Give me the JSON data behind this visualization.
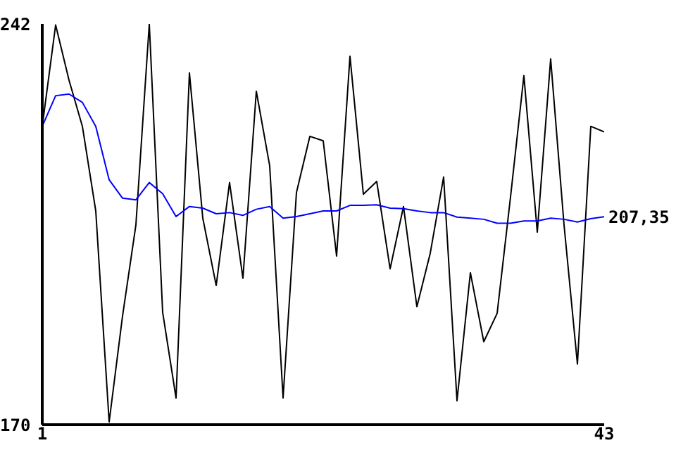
{
  "chart_data": {
    "type": "line",
    "x": [
      1,
      2,
      3,
      4,
      5,
      6,
      7,
      8,
      9,
      10,
      11,
      12,
      13,
      14,
      15,
      16,
      17,
      18,
      19,
      20,
      21,
      22,
      23,
      24,
      25,
      26,
      27,
      28,
      29,
      30,
      31,
      32,
      33,
      34,
      35,
      36,
      37,
      38,
      39,
      40,
      41,
      42,
      43
    ],
    "series": [
      {
        "color": "#000000",
        "values": [
          223.6,
          241.8,
          231.9,
          223.6,
          208.4,
          170.5,
          189.5,
          205.9,
          242,
          190.2,
          174.8,
          233.2,
          207.1,
          195,
          213.5,
          196.3,
          229.9,
          216.5,
          174.8,
          211.7,
          221.8,
          221,
          200.3,
          236.2,
          211.4,
          213.7,
          198,
          209.2,
          191.2,
          200.8,
          214.5,
          174.3,
          197.3,
          184.9,
          190,
          210.9,
          232.7,
          204.6,
          235.7,
          205.9,
          180.9,
          223.6,
          222.6
        ]
      },
      {
        "color": "#0000ff",
        "values": [
          223.6,
          229.1,
          229.4,
          227.9,
          223.6,
          214,
          210.7,
          210.4,
          213.5,
          211.5,
          207.4,
          209.2,
          208.9,
          207.9,
          208.1,
          207.6,
          208.7,
          209.2,
          207.1,
          207.4,
          207.9,
          208.4,
          208.4,
          209.4,
          209.4,
          209.5,
          208.9,
          208.8,
          208.4,
          208.1,
          208.1,
          207.3,
          207.1,
          206.9,
          206.2,
          206.2,
          206.6,
          206.6,
          207.1,
          206.9,
          206.4,
          207,
          207.35
        ]
      }
    ],
    "xlim": [
      1,
      43
    ],
    "xticks": [
      1,
      43
    ],
    "ylim": [
      170,
      242
    ],
    "yticks": [
      170,
      242
    ],
    "grid": false,
    "legend": false,
    "marker": "none",
    "line_style": "solid",
    "annotations": [
      {
        "text": "207,35",
        "x": 43,
        "y": 207.35
      }
    ]
  }
}
